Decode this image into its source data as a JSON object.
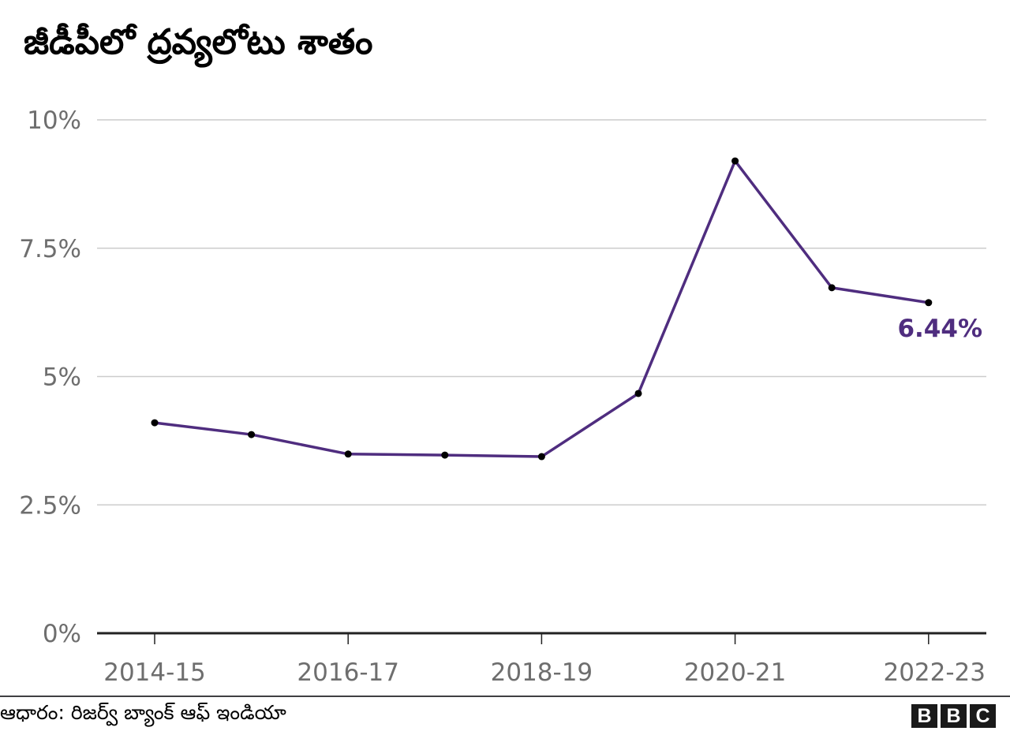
{
  "title": "జీడీపీలో ద్రవ్యలోటు శాతం",
  "source": "ఆధారం: రిజర్వ్ బ్యాంక్ ఆఫ్ ఇండియా",
  "brand": {
    "letters": [
      "B",
      "B",
      "C"
    ]
  },
  "colors": {
    "line": "#4f2d7f",
    "marker": "#000000",
    "gridline": "#cccccc",
    "baseline": "#222222",
    "axis_text": "#6e6e6e",
    "end_label": "#4f2d7f"
  },
  "axes": {
    "y_ticks": [
      {
        "value": 0,
        "label": "0%"
      },
      {
        "value": 2.5,
        "label": "2.5%"
      },
      {
        "value": 5,
        "label": "5%"
      },
      {
        "value": 7.5,
        "label": "7.5%"
      },
      {
        "value": 10,
        "label": "10%"
      }
    ],
    "x_ticks": [
      {
        "index": 0,
        "label": "2014-15"
      },
      {
        "index": 2,
        "label": "2016-17"
      },
      {
        "index": 4,
        "label": "2018-19"
      },
      {
        "index": 6,
        "label": "2020-21"
      },
      {
        "index": 8,
        "label": "2022-23"
      }
    ]
  },
  "annotation": {
    "end_label": "6.44%"
  },
  "chart_data": {
    "type": "line",
    "title": "జీడీపీలో ద్రవ్యలోటు శాతం",
    "xlabel": "",
    "ylabel": "",
    "x": [
      "2014-15",
      "2015-16",
      "2016-17",
      "2017-18",
      "2018-19",
      "2019-20",
      "2020-21",
      "2021-22",
      "2022-23"
    ],
    "series": [
      {
        "name": "Fiscal deficit as % of GDP",
        "values": [
          4.1,
          3.87,
          3.49,
          3.47,
          3.44,
          4.67,
          9.2,
          6.73,
          6.44
        ]
      }
    ],
    "ylim": [
      0,
      10
    ],
    "y_tick_labels": [
      "0%",
      "2.5%",
      "5%",
      "7.5%",
      "10%"
    ],
    "x_tick_labels": [
      "2014-15",
      "2016-17",
      "2018-19",
      "2020-21",
      "2022-23"
    ],
    "grid": true,
    "legend": "none",
    "annotations": [
      {
        "x": "2022-23",
        "text": "6.44%"
      }
    ],
    "source": "ఆధారం: రిజర్వ్ బ్యాంక్ ఆఫ్ ఇండియా"
  }
}
